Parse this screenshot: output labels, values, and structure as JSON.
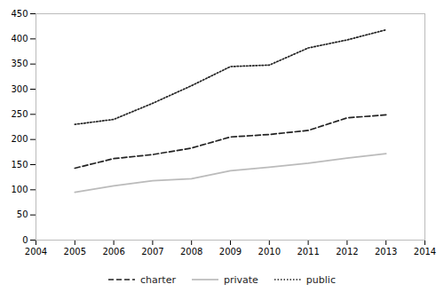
{
  "chart_data": {
    "type": "line",
    "x": [
      2005,
      2006,
      2007,
      2008,
      2009,
      2010,
      2011,
      2012,
      2013
    ],
    "series": [
      {
        "name": "charter",
        "color": "#222222",
        "line_style": "dashed",
        "values": [
          143,
          162,
          170,
          183,
          205,
          210,
          218,
          243,
          249
        ]
      },
      {
        "name": "private",
        "color": "#bbbbbb",
        "line_style": "solid",
        "values": [
          95,
          108,
          118,
          122,
          138,
          145,
          153,
          163,
          172
        ]
      },
      {
        "name": "public",
        "color": "#222222",
        "line_style": "dotted",
        "values": [
          230,
          240,
          272,
          307,
          345,
          348,
          382,
          398,
          418
        ]
      }
    ],
    "xlim": [
      2004,
      2014
    ],
    "xticks": [
      2004,
      2005,
      2006,
      2007,
      2008,
      2009,
      2010,
      2011,
      2012,
      2013,
      2014
    ],
    "ylim": [
      0,
      450
    ],
    "yticks": [
      0,
      50,
      100,
      150,
      200,
      250,
      300,
      350,
      400,
      450
    ],
    "grid": false,
    "legend": "bottom"
  }
}
